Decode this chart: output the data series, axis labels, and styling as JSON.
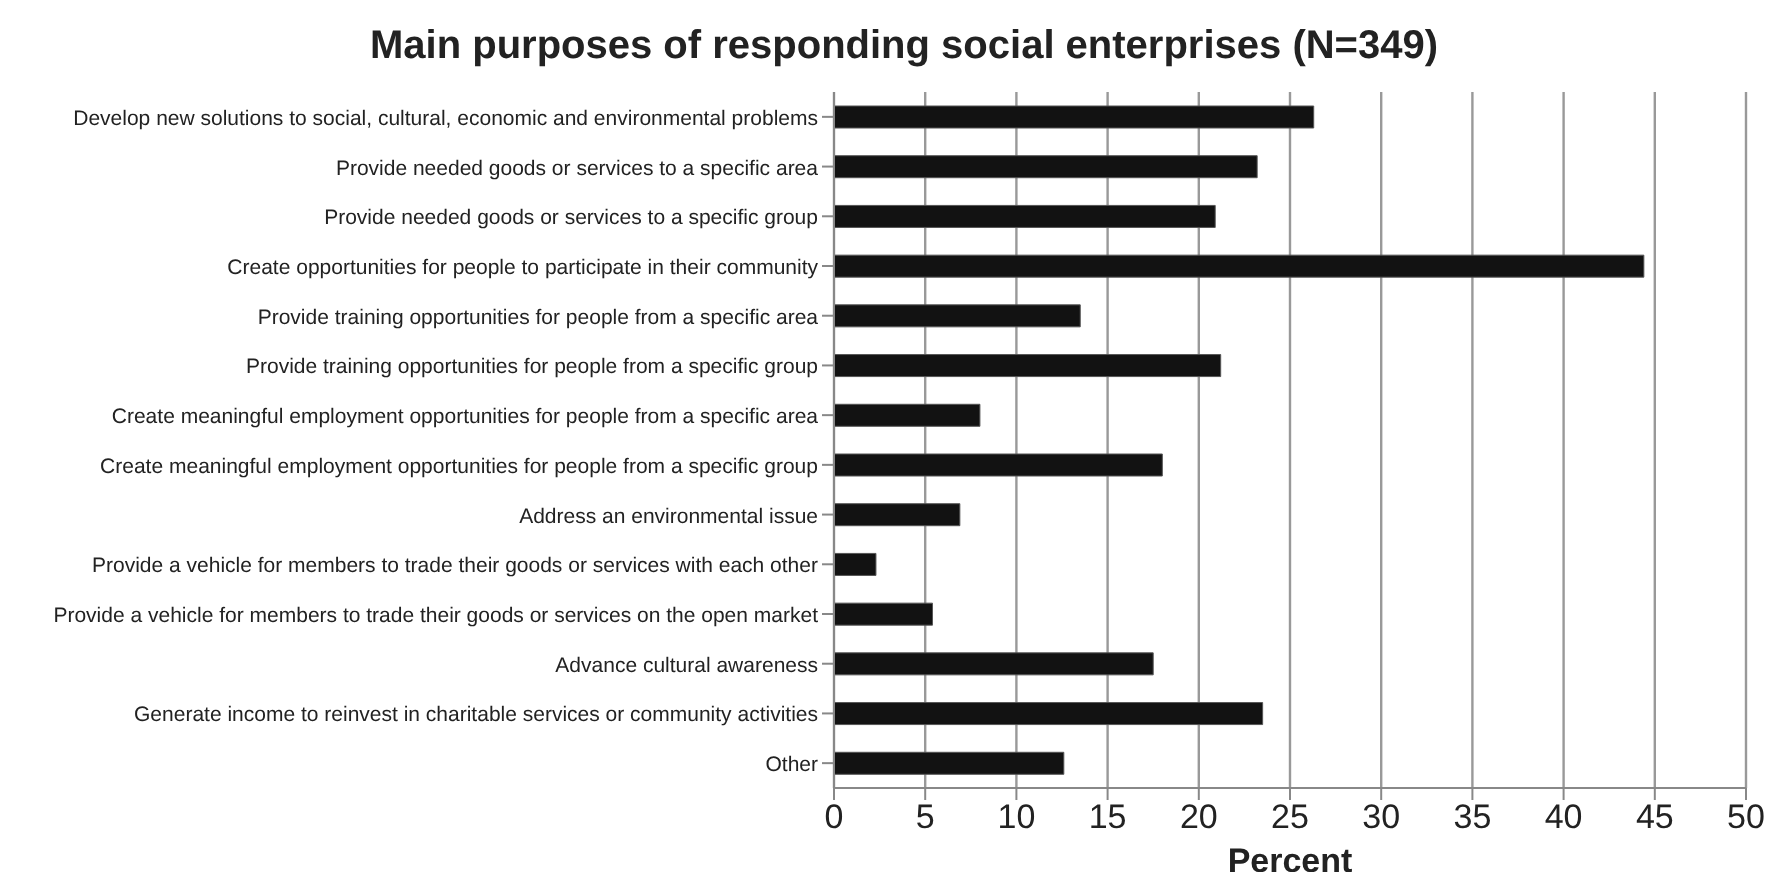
{
  "chart_data": {
    "type": "bar",
    "orientation": "horizontal",
    "title": "Main purposes of responding social enterprises (N=349)",
    "xlabel": "Percent",
    "categories": [
      "Develop new solutions to social, cultural, economic and environmental problems",
      "Provide needed goods or services to a specific area",
      "Provide needed goods or services to a specific group",
      "Create opportunities for people to participate in their community",
      "Provide training opportunities for people from a specific area",
      "Provide training opportunities for people from a specific group",
      "Create meaningful employment opportunities for people from a specific area",
      "Create meaningful employment opportunities for people from a specific group",
      "Address an environmental issue",
      "Provide a vehicle for members to trade their goods or services with each other",
      "Provide a vehicle for members to trade their goods or services on the open market",
      "Advance cultural awareness",
      "Generate income to reinvest in charitable services or community activities",
      "Other"
    ],
    "values": [
      26.3,
      23.2,
      20.9,
      44.4,
      13.5,
      21.2,
      8.0,
      18.0,
      6.9,
      2.3,
      5.4,
      17.5,
      23.5,
      12.6
    ],
    "color": "#121212",
    "xlim": [
      0,
      50
    ],
    "xticks": [
      0,
      5,
      10,
      15,
      20,
      25,
      30,
      35,
      40,
      45,
      50
    ],
    "grid": "x"
  }
}
